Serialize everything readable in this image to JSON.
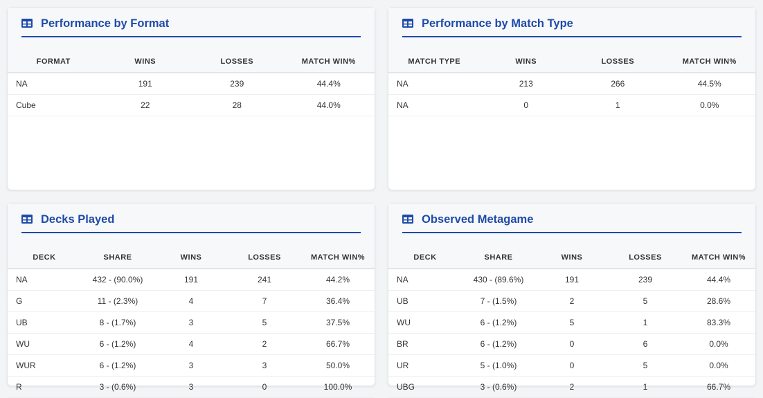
{
  "colors": {
    "accent": "#1f4ba8"
  },
  "icons": {
    "section_icon": "table-icon"
  },
  "format_card": {
    "title": "Performance by Format",
    "headers": [
      "FORMAT",
      "WINS",
      "LOSSES",
      "MATCH WIN%"
    ],
    "rows": [
      [
        "NA",
        "191",
        "239",
        "44.4%"
      ],
      [
        "Cube",
        "22",
        "28",
        "44.0%"
      ]
    ]
  },
  "match_type_card": {
    "title": "Performance by Match Type",
    "headers": [
      "MATCH TYPE",
      "WINS",
      "LOSSES",
      "MATCH WIN%"
    ],
    "rows": [
      [
        "NA",
        "213",
        "266",
        "44.5%"
      ],
      [
        "NA",
        "0",
        "1",
        "0.0%"
      ]
    ]
  },
  "decks_card": {
    "title": "Decks Played",
    "headers": [
      "DECK",
      "SHARE",
      "WINS",
      "LOSSES",
      "MATCH WIN%"
    ],
    "rows": [
      [
        "NA",
        "432 - (90.0%)",
        "191",
        "241",
        "44.2%"
      ],
      [
        "G",
        "11 - (2.3%)",
        "4",
        "7",
        "36.4%"
      ],
      [
        "UB",
        "8 - (1.7%)",
        "3",
        "5",
        "37.5%"
      ],
      [
        "WU",
        "6 - (1.2%)",
        "4",
        "2",
        "66.7%"
      ],
      [
        "WUR",
        "6 - (1.2%)",
        "3",
        "3",
        "50.0%"
      ],
      [
        "R",
        "3 - (0.6%)",
        "3",
        "0",
        "100.0%"
      ]
    ]
  },
  "metagame_card": {
    "title": "Observed Metagame",
    "headers": [
      "DECK",
      "SHARE",
      "WINS",
      "LOSSES",
      "MATCH WIN%"
    ],
    "rows": [
      [
        "NA",
        "430 - (89.6%)",
        "191",
        "239",
        "44.4%"
      ],
      [
        "UB",
        "7 - (1.5%)",
        "2",
        "5",
        "28.6%"
      ],
      [
        "WU",
        "6 - (1.2%)",
        "5",
        "1",
        "83.3%"
      ],
      [
        "BR",
        "6 - (1.2%)",
        "0",
        "6",
        "0.0%"
      ],
      [
        "UR",
        "5 - (1.0%)",
        "0",
        "5",
        "0.0%"
      ],
      [
        "UBG",
        "3 - (0.6%)",
        "2",
        "1",
        "66.7%"
      ]
    ]
  }
}
